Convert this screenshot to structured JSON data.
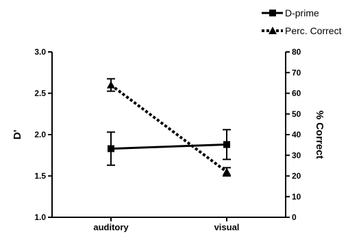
{
  "chart_data": {
    "type": "line",
    "categories": [
      "auditory",
      "visual"
    ],
    "left_axis": {
      "label": "D'",
      "range": [
        1.0,
        3.0
      ],
      "ticks": [
        "1.0",
        "1.5",
        "2.0",
        "2.5",
        "3.0"
      ]
    },
    "right_axis": {
      "label": "% Correct",
      "range": [
        0,
        80
      ],
      "ticks": [
        "0",
        "10",
        "20",
        "30",
        "40",
        "50",
        "60",
        "70",
        "80"
      ]
    },
    "series": [
      {
        "name": "D-prime",
        "axis": "left",
        "marker": "square",
        "line_style": "solid",
        "values": [
          1.83,
          1.88
        ],
        "errors": [
          0.2,
          0.18
        ]
      },
      {
        "name": "Perc. Correct",
        "axis": "right",
        "marker": "triangle",
        "line_style": "dotted",
        "values": [
          64,
          22
        ],
        "errors": [
          3,
          2
        ]
      }
    ],
    "grid": false,
    "legend_position": "top-right"
  }
}
